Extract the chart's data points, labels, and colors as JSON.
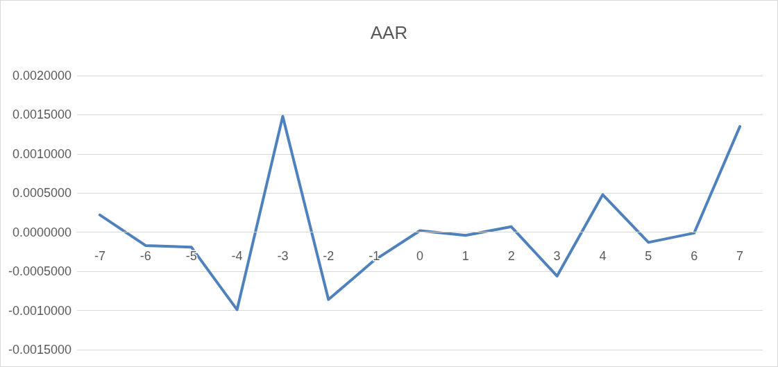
{
  "chart_data": {
    "type": "line",
    "title": "AAR",
    "categories": [
      "-7",
      "-6",
      "-5",
      "-4",
      "-3",
      "-2",
      "-1",
      "0",
      "1",
      "2",
      "3",
      "4",
      "5",
      "6",
      "7"
    ],
    "series": [
      {
        "color": "#4f81bd",
        "values": [
          0.00022,
          -0.00017,
          -0.00019,
          -0.00099,
          0.00148,
          -0.00086,
          -0.00036,
          2e-05,
          -4e-05,
          7e-05,
          -0.00056,
          0.00048,
          -0.00013,
          -1e-05,
          0.00135
        ]
      }
    ],
    "ylim": [
      -0.0015,
      0.002
    ],
    "yticks": [
      {
        "value": -0.0015,
        "label": "-0.0015000"
      },
      {
        "value": -0.001,
        "label": "-0.0010000"
      },
      {
        "value": -0.0005,
        "label": "-0.0005000"
      },
      {
        "value": 0,
        "label": "0.0000000"
      },
      {
        "value": 0.0005,
        "label": "0.0005000"
      },
      {
        "value": 0.001,
        "label": "0.0010000"
      },
      {
        "value": 0.0015,
        "label": "0.0015000"
      },
      {
        "value": 0.002,
        "label": "0.0020000"
      }
    ],
    "grid": "y",
    "marker": "none",
    "line_style": "solid"
  }
}
